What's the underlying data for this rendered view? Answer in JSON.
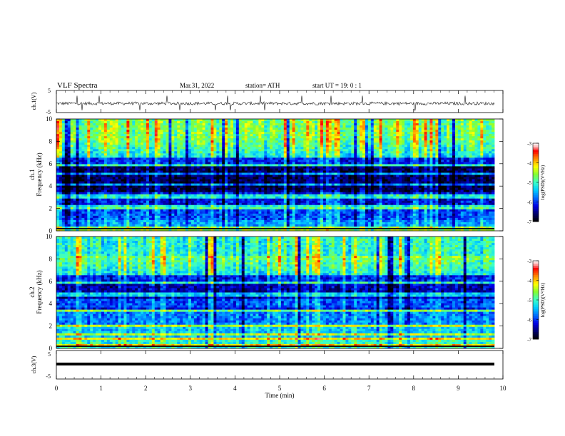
{
  "header": {
    "title": "VLF  Spectra",
    "date": "Mar.31, 2022",
    "station": "station= ATH",
    "start_ut": "start  UT  =    19: 0   : 1"
  },
  "colors": {
    "trace": "#111111",
    "spectrogram_scale": [
      "#000000",
      "#00008b",
      "#0000ff",
      "#0070ff",
      "#00cfff",
      "#30ffcf",
      "#7fff30",
      "#ffff00",
      "#ff8c00",
      "#ff0000",
      "#ffb0b0",
      "#ffffff"
    ]
  },
  "chart_data": [
    {
      "type": "line",
      "name": "ch1-waveform",
      "ylabel": "ch.1(V)",
      "ylim": [
        -5,
        5
      ],
      "y_ticks": [
        "5",
        "-5"
      ],
      "xlim": [
        0,
        10
      ],
      "description_values": "noisy waveform around -1 V with spikes"
    },
    {
      "type": "heatmap",
      "name": "ch1-spectrogram",
      "ylabel_line1": "ch.1",
      "ylabel_line2": "Frequency (kHz)",
      "ylim": [
        0,
        10
      ],
      "y_ticks": [
        "0",
        "2",
        "4",
        "6",
        "8",
        "10"
      ],
      "colorbar": {
        "label": "log(PSD)(V²/Hz)",
        "range": [
          -7,
          -3
        ],
        "ticks": [
          "-3",
          "-4",
          "-5",
          "-6",
          "-7"
        ]
      }
    },
    {
      "type": "heatmap",
      "name": "ch2-spectrogram",
      "ylabel_line1": "ch.2",
      "ylabel_line2": "Frequency (kHz)",
      "ylim": [
        0,
        10
      ],
      "y_ticks": [
        "0",
        "2",
        "4",
        "6",
        "8",
        "10"
      ],
      "colorbar": {
        "label": "log(PSD)(V²/Hz)",
        "range": [
          -7,
          -3
        ],
        "ticks": [
          "-3",
          "-4",
          "-5",
          "-6",
          "-7"
        ]
      }
    },
    {
      "type": "line",
      "name": "ch3-waveform",
      "ylabel": "ch.3(V)",
      "ylim": [
        -5,
        5
      ],
      "y_ticks": [
        "5",
        "-5"
      ],
      "value": -1,
      "xlim": [
        0,
        10
      ]
    }
  ],
  "x_axis": {
    "label": "Time  (min)",
    "ticks": [
      "0",
      "1",
      "2",
      "3",
      "4",
      "5",
      "6",
      "7",
      "8",
      "9",
      "10"
    ],
    "range": [
      0,
      10
    ]
  }
}
